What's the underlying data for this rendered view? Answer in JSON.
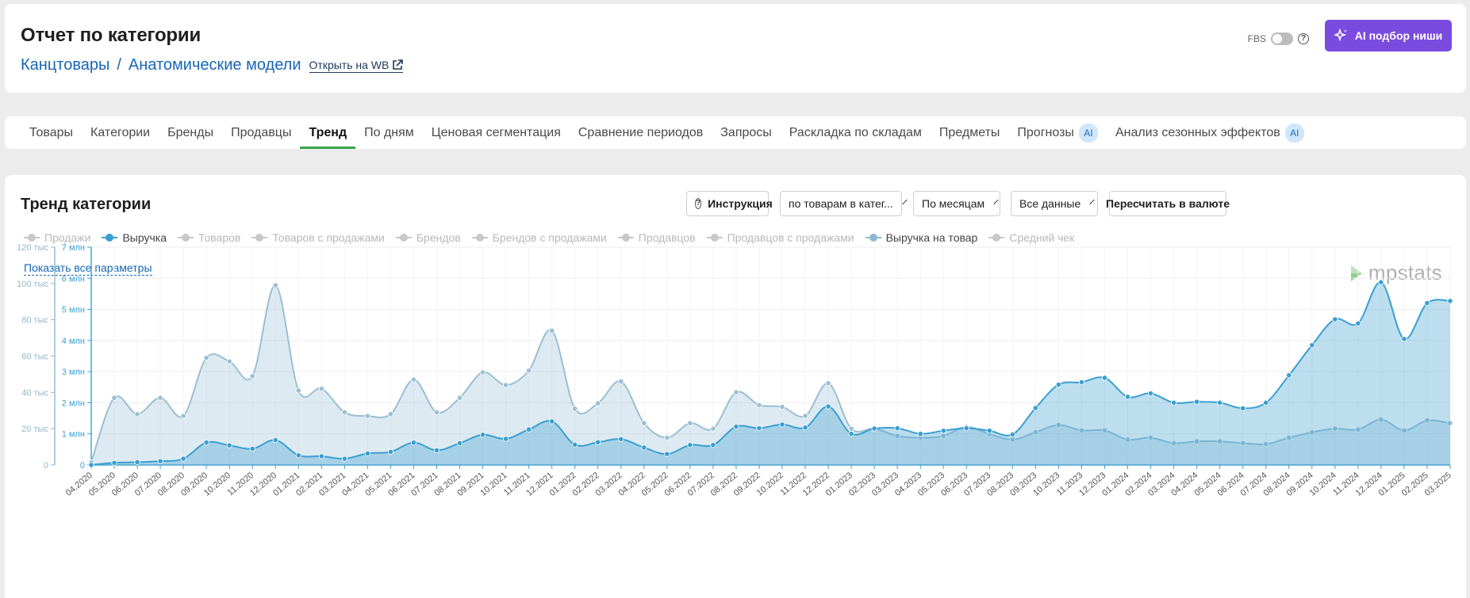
{
  "header": {
    "title": "Отчет по категории",
    "crumb_1": "Канцтовары",
    "crumb_sep": "/",
    "crumb_2": "Анатомические модели",
    "wb_link": "Открыть на WB",
    "fbs_label": "FBS",
    "ai_button": "AI подбор ниши"
  },
  "tabs": [
    {
      "label": "Товары"
    },
    {
      "label": "Категории"
    },
    {
      "label": "Бренды"
    },
    {
      "label": "Продавцы"
    },
    {
      "label": "Тренд",
      "active": true
    },
    {
      "label": "По дням"
    },
    {
      "label": "Ценовая сегментация"
    },
    {
      "label": "Сравнение периодов"
    },
    {
      "label": "Запросы"
    },
    {
      "label": "Раскладка по складам"
    },
    {
      "label": "Предметы"
    },
    {
      "label": "Прогнозы",
      "badge": "AI"
    },
    {
      "label": "Анализ сезонных эффектов",
      "badge": "AI"
    }
  ],
  "chart_section": {
    "title": "Тренд категории",
    "instruction_button": "Инструкция",
    "mode_select": "по товарам в катег...",
    "period_select": "По месяцам",
    "range_select": "Все данные",
    "currency_button": "Пересчитать в валюте",
    "show_all_link": "Показать все параметры",
    "logo_text": "mpstats"
  },
  "legend": [
    {
      "label": "Продажи",
      "on": false
    },
    {
      "label": "Выручка",
      "on": true,
      "color": "#3a9fd1"
    },
    {
      "label": "Товаров",
      "on": false
    },
    {
      "label": "Товаров с продажами",
      "on": false
    },
    {
      "label": "Брендов",
      "on": false
    },
    {
      "label": "Брендов с продажами",
      "on": false
    },
    {
      "label": "Продавцов",
      "on": false
    },
    {
      "label": "Продавцов с продажами",
      "on": false
    },
    {
      "label": "Выручка на товар",
      "on": true,
      "color": "#8fb8cf"
    },
    {
      "label": "Средний чек",
      "on": false
    }
  ],
  "colors": {
    "revenue": "#3a9fd1",
    "revenue_per_item": "#98bed3",
    "accent": "#7b4be0",
    "active_tab": "#3aa24a"
  },
  "chart_data": {
    "type": "area",
    "x": [
      "04.2020",
      "05.2020",
      "06.2020",
      "07.2020",
      "08.2020",
      "09.2020",
      "10.2020",
      "11.2020",
      "12.2020",
      "01.2021",
      "02.2021",
      "03.2021",
      "04.2021",
      "05.2021",
      "06.2021",
      "07.2021",
      "08.2021",
      "09.2021",
      "10.2021",
      "11.2021",
      "12.2021",
      "01.2022",
      "02.2022",
      "03.2022",
      "04.2022",
      "05.2022",
      "06.2022",
      "07.2022",
      "08.2022",
      "09.2022",
      "10.2022",
      "11.2022",
      "12.2022",
      "01.2023",
      "02.2023",
      "03.2023",
      "04.2023",
      "05.2023",
      "06.2023",
      "07.2023",
      "08.2023",
      "09.2023",
      "10.2023",
      "11.2023",
      "12.2023",
      "01.2024",
      "02.2024",
      "03.2024",
      "04.2024",
      "05.2024",
      "06.2024",
      "07.2024",
      "08.2024",
      "09.2024",
      "10.2024",
      "11.2024",
      "12.2024",
      "01.2025",
      "02.2025",
      "03.2025"
    ],
    "left_axis_ticks": [
      "0",
      "20 тыс",
      "40 тыс",
      "60 тыс",
      "80 тыс",
      "100 тыс",
      "120 тыс"
    ],
    "left_axis_max": 120000,
    "right_axis_ticks": [
      "0",
      "1 млн",
      "2 млн",
      "3 млн",
      "4 млн",
      "5 млн",
      "6 млн",
      "7 млн"
    ],
    "right_axis_max": 7000000,
    "series": [
      {
        "name": "Выручка на товар",
        "axis": "left",
        "values": [
          1500,
          37000,
          28000,
          37000,
          27000,
          59000,
          57000,
          49000,
          99000,
          41000,
          42000,
          29000,
          27000,
          28000,
          47000,
          29000,
          37000,
          51000,
          44000,
          52000,
          74000,
          31000,
          34000,
          46000,
          23000,
          15000,
          23000,
          20000,
          40000,
          33000,
          32000,
          27000,
          45000,
          20000,
          20000,
          16000,
          15000,
          16000,
          21000,
          17000,
          14000,
          18000,
          22000,
          19000,
          19000,
          14000,
          15000,
          12000,
          13000,
          13000,
          12000,
          11500,
          15000,
          18000,
          20000,
          19500,
          25000,
          19000,
          24500,
          23000
        ]
      },
      {
        "name": "Выручка",
        "axis": "right",
        "values": [
          0,
          70000,
          90000,
          120000,
          200000,
          720000,
          630000,
          520000,
          800000,
          310000,
          280000,
          200000,
          370000,
          420000,
          720000,
          470000,
          700000,
          970000,
          840000,
          1140000,
          1400000,
          650000,
          730000,
          830000,
          560000,
          350000,
          640000,
          640000,
          1230000,
          1180000,
          1300000,
          1200000,
          1880000,
          1000000,
          1170000,
          1180000,
          1000000,
          1100000,
          1180000,
          1100000,
          980000,
          1830000,
          2580000,
          2660000,
          2800000,
          2190000,
          2300000,
          2000000,
          2030000,
          2000000,
          1820000,
          2000000,
          2880000,
          3850000,
          4680000,
          4550000,
          5870000,
          4050000,
          5200000,
          5270000
        ]
      }
    ],
    "grid": true,
    "legend_position": "top-left"
  }
}
